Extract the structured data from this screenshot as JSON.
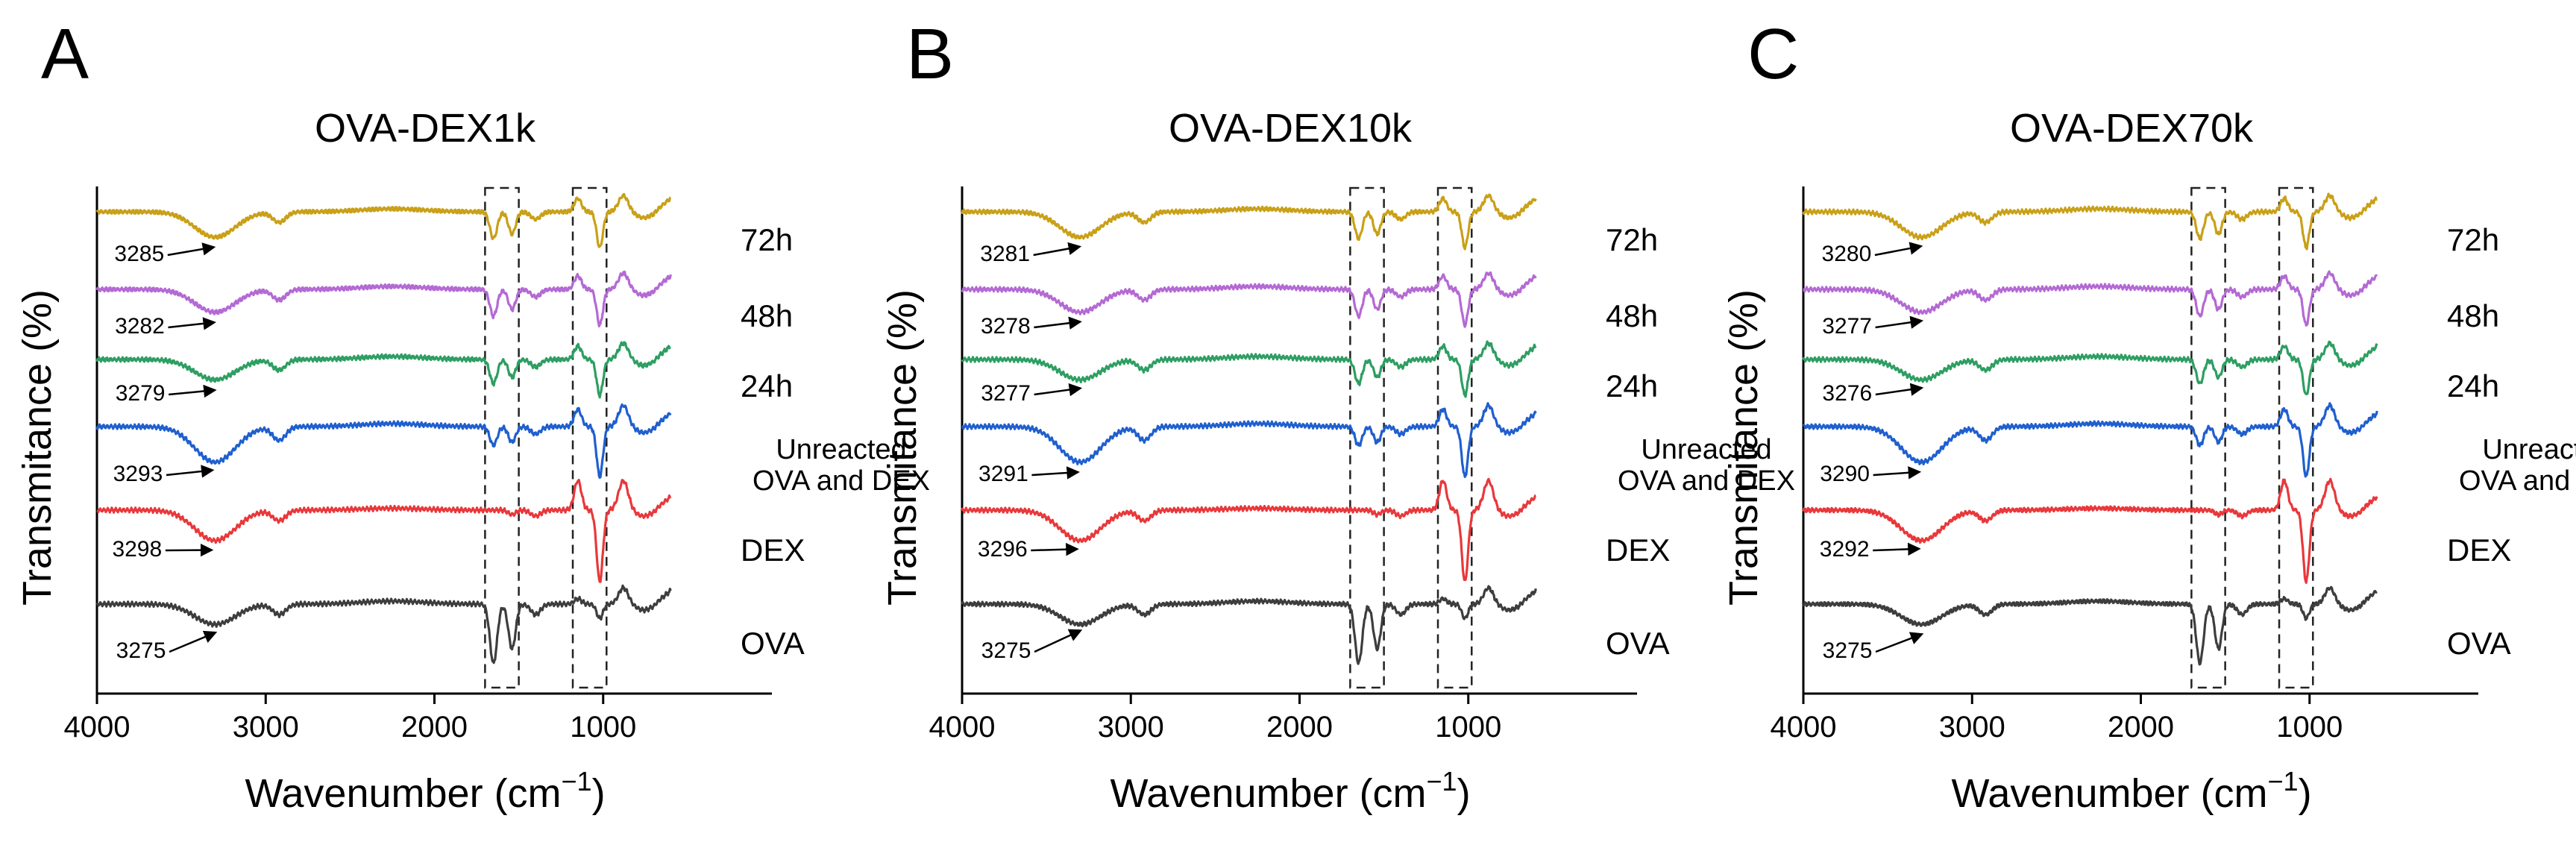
{
  "figure": {
    "xlabel_main": "Wavenumber (cm",
    "xlabel_sup": "−1",
    "xlabel_close": ")",
    "ylabel": "Transmitance (%)"
  },
  "chart_data": [
    {
      "type": "line",
      "panel_label": "A",
      "title": "OVA-DEX1k",
      "xlabel": "Wavenumber (cm−1)",
      "ylabel": "Transmitance (%)",
      "xlim": [
        4000,
        0
      ],
      "xticks": [
        4000,
        3000,
        2000,
        1000
      ],
      "highlight_regions": [
        [
          1700,
          1500
        ],
        [
          1180,
          980
        ]
      ],
      "series": [
        {
          "name": "72h",
          "color": "#c9a017",
          "peak_label": "3285",
          "peak_x": 3285
        },
        {
          "name": "48h",
          "color": "#b469d4",
          "peak_label": "3282",
          "peak_x": 3282
        },
        {
          "name": "24h",
          "color": "#2e9e62",
          "peak_label": "3279",
          "peak_x": 3279
        },
        {
          "name": "Unreacted OVA and DEX",
          "color": "#1f5fcf",
          "peak_label": "3293",
          "peak_x": 3293
        },
        {
          "name": "DEX",
          "color": "#e8383b",
          "peak_label": "3298",
          "peak_x": 3298
        },
        {
          "name": "OVA",
          "color": "#3d3d3d",
          "peak_label": "3275",
          "peak_x": 3275
        }
      ]
    },
    {
      "type": "line",
      "panel_label": "B",
      "title": "OVA-DEX10k",
      "xlabel": "Wavenumber (cm−1)",
      "ylabel": "Transmitance (%)",
      "xlim": [
        4000,
        0
      ],
      "xticks": [
        4000,
        3000,
        2000,
        1000
      ],
      "highlight_regions": [
        [
          1700,
          1500
        ],
        [
          1180,
          980
        ]
      ],
      "series": [
        {
          "name": "72h",
          "color": "#c9a017",
          "peak_label": "3281",
          "peak_x": 3281
        },
        {
          "name": "48h",
          "color": "#b469d4",
          "peak_label": "3278",
          "peak_x": 3278
        },
        {
          "name": "24h",
          "color": "#2e9e62",
          "peak_label": "3277",
          "peak_x": 3277
        },
        {
          "name": "Unreacted OVA and DEX",
          "color": "#1f5fcf",
          "peak_label": "3291",
          "peak_x": 3291
        },
        {
          "name": "DEX",
          "color": "#e8383b",
          "peak_label": "3296",
          "peak_x": 3296
        },
        {
          "name": "OVA",
          "color": "#3d3d3d",
          "peak_label": "3275",
          "peak_x": 3275
        }
      ]
    },
    {
      "type": "line",
      "panel_label": "C",
      "title": "OVA-DEX70k",
      "xlabel": "Wavenumber (cm−1)",
      "ylabel": "Transmitance (%)",
      "xlim": [
        4000,
        0
      ],
      "xticks": [
        4000,
        3000,
        2000,
        1000
      ],
      "highlight_regions": [
        [
          1700,
          1500
        ],
        [
          1180,
          980
        ]
      ],
      "series": [
        {
          "name": "72h",
          "color": "#c9a017",
          "peak_label": "3280",
          "peak_x": 3280
        },
        {
          "name": "48h",
          "color": "#b469d4",
          "peak_label": "3277",
          "peak_x": 3277
        },
        {
          "name": "24h",
          "color": "#2e9e62",
          "peak_label": "3276",
          "peak_x": 3276
        },
        {
          "name": "Unreacted OVA and DEX",
          "color": "#1f5fcf",
          "peak_label": "3290",
          "peak_x": 3290
        },
        {
          "name": "DEX",
          "color": "#e8383b",
          "peak_label": "3292",
          "peak_x": 3292
        },
        {
          "name": "OVA",
          "color": "#3d3d3d",
          "peak_label": "3275",
          "peak_x": 3275
        }
      ]
    }
  ]
}
